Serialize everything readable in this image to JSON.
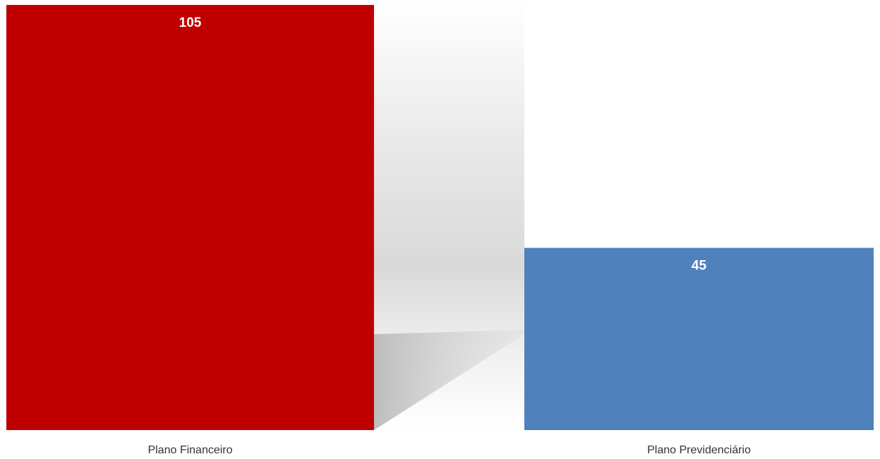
{
  "chart_data": {
    "type": "bar",
    "categories": [
      "Plano Financeiro",
      "Plano Previdenciário"
    ],
    "values": [
      105,
      45
    ],
    "title": "",
    "xlabel": "",
    "ylabel": "",
    "ylim": [
      0,
      105
    ],
    "grid": false,
    "legend": "none",
    "colors": [
      "#C00000",
      "#4F81BD"
    ]
  }
}
